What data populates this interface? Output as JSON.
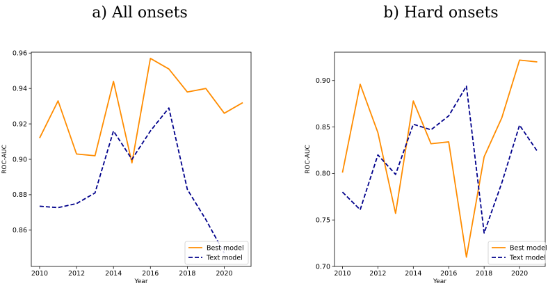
{
  "chart_data": [
    {
      "type": "line",
      "title": "a) All onsets",
      "xlabel": "Year",
      "ylabel": "ROC-AUC",
      "xlim": [
        2009.55,
        2021.45
      ],
      "ylim": [
        0.8395,
        0.9605
      ],
      "xticks": [
        2010,
        2012,
        2014,
        2016,
        2018,
        2020
      ],
      "yticks": [
        0.86,
        0.88,
        0.9,
        0.92,
        0.94,
        0.96
      ],
      "ytick_labels": [
        "0.86",
        "0.88",
        "0.90",
        "0.92",
        "0.94",
        "0.96"
      ],
      "x": [
        2010,
        2011,
        2012,
        2013,
        2014,
        2015,
        2016,
        2017,
        2018,
        2019,
        2020,
        2021
      ],
      "series": [
        {
          "name": "Best model",
          "color": "#ff8c00",
          "style": "solid",
          "values": [
            0.912,
            0.933,
            0.903,
            0.902,
            0.944,
            0.898,
            0.957,
            0.951,
            0.938,
            0.94,
            0.926,
            0.932
          ]
        },
        {
          "name": "Text model",
          "color": "#00008b",
          "style": "dashed",
          "values": [
            0.8735,
            0.8727,
            0.875,
            0.881,
            0.916,
            0.9,
            0.916,
            0.929,
            0.883,
            0.866,
            0.847,
            null
          ]
        }
      ],
      "legend": "lower right",
      "grid": false
    },
    {
      "type": "line",
      "title": "b) Hard onsets",
      "xlabel": "Year",
      "ylabel": "ROC-AUC",
      "xlim": [
        2009.55,
        2021.45
      ],
      "ylim": [
        0.7,
        0.9305
      ],
      "xticks": [
        2010,
        2012,
        2014,
        2016,
        2018,
        2020
      ],
      "yticks": [
        0.7,
        0.75,
        0.8,
        0.85,
        0.9
      ],
      "ytick_labels": [
        "0.70",
        "0.75",
        "0.80",
        "0.85",
        "0.90"
      ],
      "x": [
        2010,
        2011,
        2012,
        2013,
        2014,
        2015,
        2016,
        2017,
        2018,
        2019,
        2020,
        2021
      ],
      "series": [
        {
          "name": "Best model",
          "color": "#ff8c00",
          "style": "solid",
          "values": [
            0.801,
            0.896,
            0.844,
            0.757,
            0.878,
            0.832,
            0.834,
            0.71,
            0.818,
            0.86,
            0.922,
            0.92
          ]
        },
        {
          "name": "Text model",
          "color": "#00008b",
          "style": "dashed",
          "values": [
            0.78,
            0.761,
            0.82,
            0.799,
            0.853,
            0.847,
            0.862,
            0.894,
            0.736,
            0.79,
            0.852,
            0.824
          ]
        }
      ],
      "legend": "lower right",
      "grid": false
    }
  ]
}
